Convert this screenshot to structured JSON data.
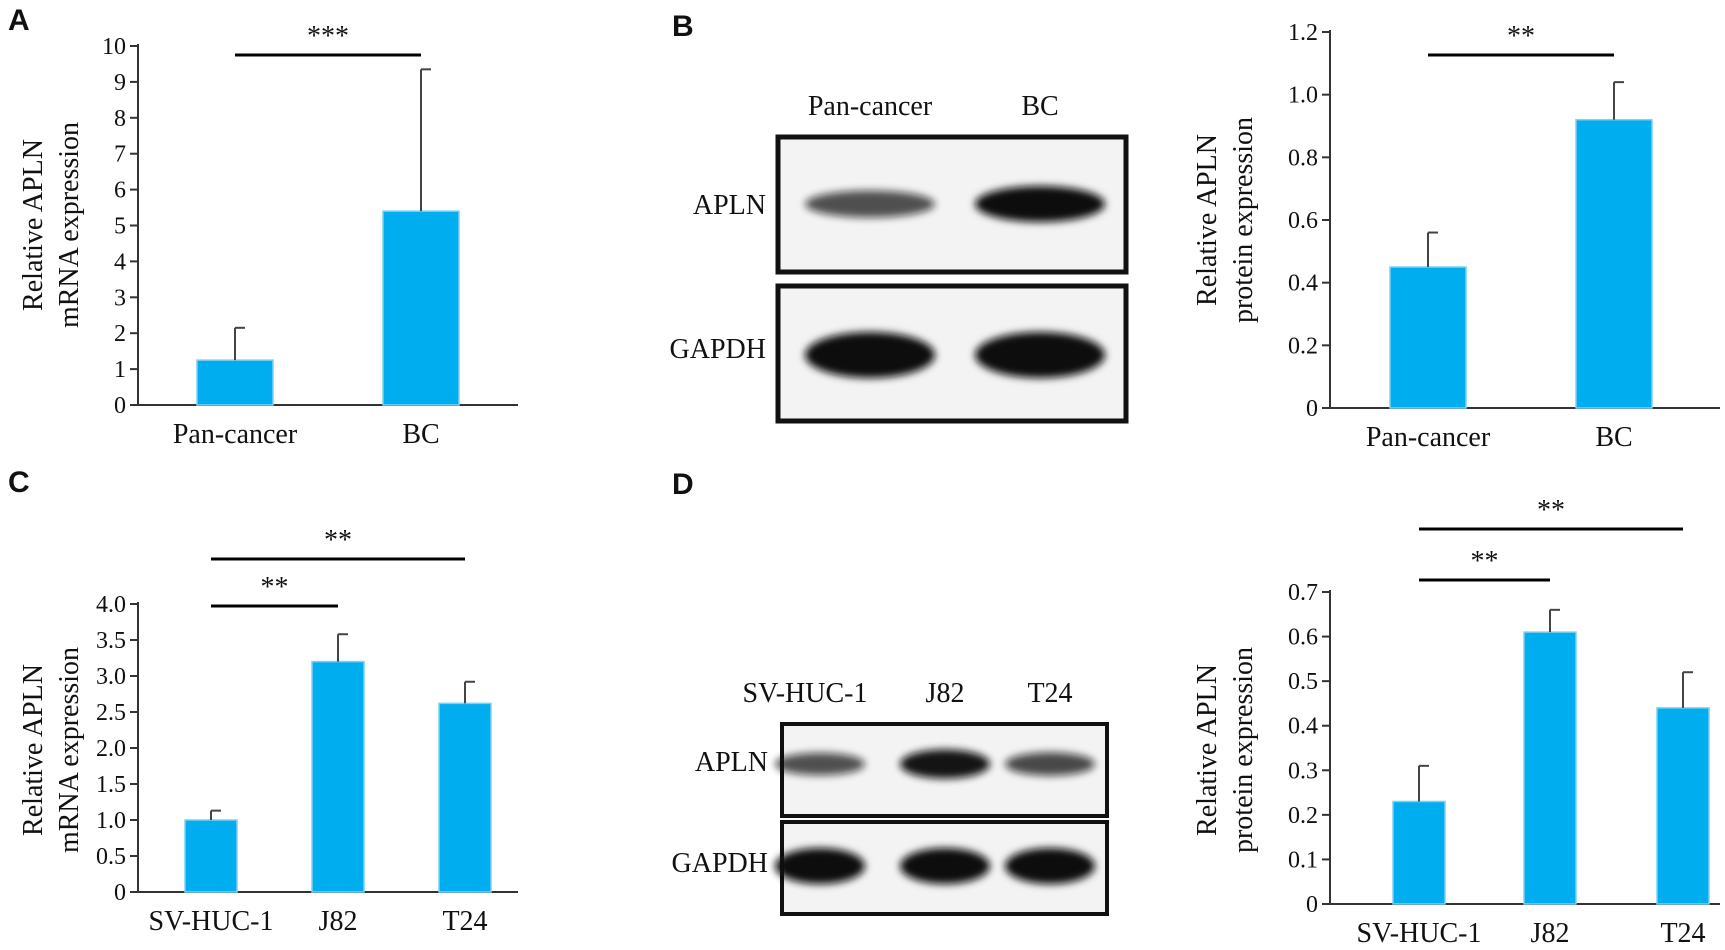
{
  "colors": {
    "bar": "#00AEEF",
    "bar_edge": "#7fd0f0",
    "axis": "#333333",
    "band": "#111111"
  },
  "panels": [
    {
      "letter": "A",
      "chart_data": {
        "type": "bar",
        "categories": [
          "Pan-cancer",
          "BC"
        ],
        "values": [
          1.25,
          5.4
        ],
        "errors": [
          0.9,
          3.95
        ],
        "ylabel_lines": [
          "Relative APLN",
          "mRNA expression"
        ],
        "ylim": [
          0,
          10
        ],
        "yticks": [
          "0",
          "1",
          "2",
          "3",
          "4",
          "5",
          "6",
          "7",
          "8",
          "9",
          "10"
        ],
        "significance": [
          {
            "from": 0,
            "to": 1,
            "label": "***"
          }
        ]
      }
    },
    {
      "letter": "B",
      "blot": {
        "lanes": [
          "Pan-cancer",
          "BC"
        ],
        "rows": [
          {
            "label": "APLN",
            "intensity": [
              0.55,
              1.0
            ]
          },
          {
            "label": "GAPDH",
            "intensity": [
              1.0,
              1.0
            ]
          }
        ]
      },
      "chart_data": {
        "type": "bar",
        "categories": [
          "Pan-cancer",
          "BC"
        ],
        "values": [
          0.45,
          0.92
        ],
        "errors": [
          0.11,
          0.12
        ],
        "ylabel_lines": [
          "Relative APLN",
          "protein expression"
        ],
        "ylim": [
          0,
          1.2
        ],
        "yticks": [
          "0",
          "0.2",
          "0.4",
          "0.6",
          "0.8",
          "1.0",
          "1.2"
        ],
        "significance": [
          {
            "from": 0,
            "to": 1,
            "label": "**"
          }
        ]
      }
    },
    {
      "letter": "C",
      "chart_data": {
        "type": "bar",
        "categories": [
          "SV-HUC-1",
          "J82",
          "T24"
        ],
        "values": [
          1.0,
          3.2,
          2.62
        ],
        "errors": [
          0.13,
          0.38,
          0.3
        ],
        "ylabel_lines": [
          "Relative APLN",
          "mRNA expression"
        ],
        "ylim": [
          0,
          4.0
        ],
        "yticks": [
          "0",
          "0.5",
          "1.0",
          "1.5",
          "2.0",
          "2.5",
          "3.0",
          "3.5",
          "4.0"
        ],
        "significance": [
          {
            "from": 0,
            "to": 1,
            "label": "**"
          },
          {
            "from": 0,
            "to": 2,
            "label": "**"
          }
        ]
      }
    },
    {
      "letter": "D",
      "blot": {
        "lanes": [
          "SV-HUC-1",
          "J82",
          "T24"
        ],
        "rows": [
          {
            "label": "APLN",
            "intensity": [
              0.55,
              0.95,
              0.6
            ]
          },
          {
            "label": "GAPDH",
            "intensity": [
              1.0,
              1.0,
              1.0
            ]
          }
        ]
      },
      "chart_data": {
        "type": "bar",
        "categories": [
          "SV-HUC-1",
          "J82",
          "T24"
        ],
        "values": [
          0.23,
          0.61,
          0.44
        ],
        "errors": [
          0.08,
          0.05,
          0.08
        ],
        "ylabel_lines": [
          "Relative APLN",
          "protein expression"
        ],
        "ylim": [
          0,
          0.7
        ],
        "yticks": [
          "0",
          "0.1",
          "0.2",
          "0.3",
          "0.4",
          "0.5",
          "0.6",
          "0.7"
        ],
        "significance": [
          {
            "from": 0,
            "to": 1,
            "label": "**"
          },
          {
            "from": 0,
            "to": 2,
            "label": "**"
          }
        ]
      }
    }
  ]
}
